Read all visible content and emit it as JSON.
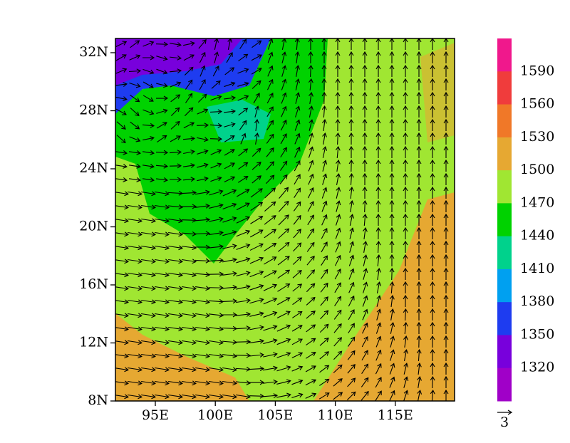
{
  "map": {
    "lat_labels": [
      "32N",
      "28N",
      "24N",
      "20N",
      "16N",
      "12N",
      "8N"
    ],
    "lon_labels": [
      "95E",
      "100E",
      "105E",
      "110E",
      "115E"
    ],
    "colorbar": {
      "levels": [
        1590,
        1560,
        1530,
        1500,
        1470,
        1440,
        1410,
        1380,
        1350,
        1320
      ],
      "colors": [
        "#f0188c",
        "#f03c3c",
        "#f07828",
        "#e6a832",
        "#a0e632",
        "#00d200",
        "#00d28c",
        "#00a0f0",
        "#1e3cf0",
        "#7800dc",
        "#a000c8"
      ]
    },
    "vector_reference": "3"
  }
}
